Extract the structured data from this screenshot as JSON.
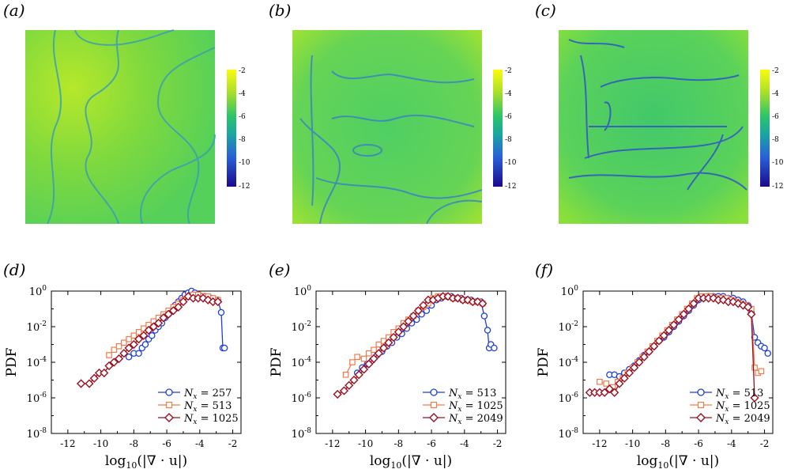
{
  "figure": {
    "panel_labels": [
      "(a)",
      "(b)",
      "(c)",
      "(d)",
      "(e)",
      "(f)"
    ]
  },
  "colorbar": {
    "ticks": [
      "-2",
      "-4",
      "-6",
      "-8",
      "-10",
      "-12"
    ],
    "range": [
      -12,
      -2
    ]
  },
  "colors": {
    "low": "#1a0a8c",
    "mid": "#2bc46a",
    "high": "#f9fb0e",
    "series_blue": "#1f3fd8",
    "series_orange": "#f07a4a",
    "series_red": "#9a1020"
  },
  "chart_data": [
    {
      "panel": "(d)",
      "type": "line",
      "ylabel": "PDF",
      "xlabel_main": "log",
      "xlabel_sub": "10",
      "xlabel_rest": "(|∇ · u|)",
      "xlim": [
        -13,
        -1.5
      ],
      "ylim_exp": [
        -8,
        0
      ],
      "xticks": [
        -12,
        -10,
        -8,
        -6,
        -4,
        -2
      ],
      "xtick_labels": [
        "-12",
        "-10",
        "-8",
        "-6",
        "-4",
        "-2"
      ],
      "yticks_exp": [
        0,
        -2,
        -4,
        -6,
        -8
      ],
      "ytick_labels": [
        "0",
        "-2",
        "-4",
        "-6",
        "-8"
      ],
      "legend": [
        "N",
        "N",
        "N"
      ],
      "series": [
        {
          "name": "N_x = 257",
          "legend_text": "= 257",
          "marker": "circle",
          "color": "#1f3fd8",
          "x": [
            -8.3,
            -8,
            -7.7,
            -7.5,
            -7.3,
            -7.1,
            -6.9,
            -6.7,
            -6.5,
            -6.3,
            -6.1,
            -5.9,
            -5.7,
            -5.5,
            -5.3,
            -5.1,
            -4.9,
            -4.7,
            -4.5,
            -4.3,
            -4.1,
            -3.9,
            -3.7,
            -3.5,
            -3.3,
            -3.1,
            -2.9,
            -2.7,
            -2.6,
            -2.5
          ],
          "y": [
            -3.7,
            -3.5,
            -3.5,
            -3.2,
            -3.0,
            -2.7,
            -2.5,
            -2.2,
            -2.0,
            -1.8,
            -1.5,
            -1.3,
            -1.1,
            -0.8,
            -0.6,
            -0.4,
            -0.2,
            -0.1,
            0.0,
            -0.1,
            -0.2,
            -0.3,
            -0.3,
            -0.4,
            -0.4,
            -0.5,
            -0.5,
            -1.2,
            -3.2,
            -3.2
          ]
        },
        {
          "name": "N_x = 513",
          "legend_text": "= 513",
          "marker": "square",
          "color": "#f07a4a",
          "x": [
            -9.5,
            -9.2,
            -8.9,
            -8.6,
            -8.3,
            -8.0,
            -7.7,
            -7.4,
            -7.1,
            -6.8,
            -6.5,
            -6.2,
            -5.9,
            -5.6,
            -5.3,
            -5.0,
            -4.7,
            -4.4,
            -4.1,
            -3.8,
            -3.5,
            -3.2,
            -2.9
          ],
          "y": [
            -3.6,
            -3.3,
            -3.1,
            -2.9,
            -2.7,
            -2.5,
            -2.3,
            -2.1,
            -1.9,
            -1.7,
            -1.5,
            -1.3,
            -1.1,
            -0.9,
            -0.7,
            -0.5,
            -0.3,
            -0.2,
            -0.2,
            -0.3,
            -0.3,
            -0.4,
            -0.5
          ]
        },
        {
          "name": "N_x = 1025",
          "legend_text": "= 1025",
          "marker": "diamond",
          "color": "#9a1020",
          "x": [
            -11.2,
            -10.7,
            -10.4,
            -10.1,
            -9.8,
            -9.5,
            -9.2,
            -8.9,
            -8.6,
            -8.3,
            -8.0,
            -7.7,
            -7.4,
            -7.1,
            -6.8,
            -6.5,
            -6.2,
            -5.9,
            -5.6,
            -5.3,
            -5.0,
            -4.7,
            -4.4,
            -4.1,
            -3.8,
            -3.5,
            -3.2,
            -2.9
          ],
          "y": [
            -5.2,
            -5.2,
            -4.9,
            -4.6,
            -4.6,
            -4.2,
            -4.0,
            -3.8,
            -3.5,
            -3.2,
            -3.0,
            -2.7,
            -2.5,
            -2.2,
            -2.0,
            -1.8,
            -1.5,
            -1.3,
            -1.1,
            -0.9,
            -0.6,
            -0.3,
            -0.4,
            -0.4,
            -0.4,
            -0.5,
            -0.6,
            -0.6
          ]
        }
      ]
    },
    {
      "panel": "(e)",
      "type": "line",
      "ylabel": "PDF",
      "xlabel_main": "log",
      "xlabel_sub": "10",
      "xlabel_rest": "(|∇ · u|)",
      "xlim": [
        -13,
        -1.5
      ],
      "ylim_exp": [
        -8,
        0
      ],
      "xticks": [
        -12,
        -10,
        -8,
        -6,
        -4,
        -2
      ],
      "xtick_labels": [
        "-12",
        "-10",
        "-8",
        "-6",
        "-4",
        "-2"
      ],
      "yticks_exp": [
        0,
        -2,
        -4,
        -6,
        -8
      ],
      "ytick_labels": [
        "0",
        "-2",
        "-4",
        "-6",
        "-8"
      ],
      "legend": [
        "N",
        "N",
        "N"
      ],
      "series": [
        {
          "name": "N_x = 513",
          "legend_text": "= 513",
          "marker": "circle",
          "color": "#1f3fd8",
          "x": [
            -10.5,
            -10.2,
            -9.9,
            -9.6,
            -9.3,
            -9.0,
            -8.7,
            -8.4,
            -8.1,
            -7.8,
            -7.5,
            -7.2,
            -6.9,
            -6.6,
            -6.3,
            -6.0,
            -5.7,
            -5.4,
            -5.1,
            -4.8,
            -4.5,
            -4.2,
            -3.9,
            -3.6,
            -3.3,
            -3.0,
            -2.8,
            -2.6,
            -2.5,
            -2.4,
            -2.2
          ],
          "y": [
            -4.6,
            -4.3,
            -4.1,
            -3.9,
            -3.6,
            -3.4,
            -3.1,
            -2.9,
            -2.6,
            -2.4,
            -2.1,
            -1.8,
            -1.6,
            -1.3,
            -1.1,
            -0.8,
            -0.5,
            -0.4,
            -0.3,
            -0.3,
            -0.4,
            -0.4,
            -0.5,
            -0.5,
            -0.6,
            -0.6,
            -1.4,
            -2.2,
            -3.2,
            -3.0,
            -3.2
          ]
        },
        {
          "name": "N_x = 1025",
          "legend_text": "= 1025",
          "marker": "square",
          "color": "#f07a4a",
          "x": [
            -11.2,
            -10.8,
            -10.5,
            -10.1,
            -9.8,
            -9.5,
            -9.2,
            -8.9,
            -8.6,
            -8.3,
            -8.0,
            -7.7,
            -7.4,
            -7.1,
            -6.8,
            -6.5,
            -6.2,
            -5.9,
            -5.6,
            -5.3,
            -5.0,
            -4.7,
            -4.4,
            -4.1,
            -3.8,
            -3.5,
            -3.2,
            -2.9
          ],
          "y": [
            -4.7,
            -4.0,
            -3.7,
            -3.8,
            -3.5,
            -3.3,
            -3.0,
            -2.8,
            -2.6,
            -2.3,
            -2.1,
            -1.8,
            -1.6,
            -1.4,
            -1.1,
            -0.9,
            -0.7,
            -0.4,
            -0.3,
            -0.3,
            -0.3,
            -0.4,
            -0.4,
            -0.5,
            -0.5,
            -0.6,
            -0.6,
            -0.7
          ]
        },
        {
          "name": "N_x = 2049",
          "legend_text": "= 2049",
          "marker": "diamond",
          "color": "#9a1020",
          "x": [
            -11.7,
            -11.3,
            -11.0,
            -10.7,
            -10.4,
            -10.1,
            -9.8,
            -9.5,
            -9.2,
            -8.9,
            -8.6,
            -8.3,
            -8.0,
            -7.7,
            -7.4,
            -7.1,
            -6.8,
            -6.5,
            -6.2,
            -5.9,
            -5.6,
            -5.3,
            -5.0,
            -4.7,
            -4.4,
            -4.1,
            -3.8,
            -3.5,
            -3.2,
            -2.9
          ],
          "y": [
            -5.8,
            -5.6,
            -5.3,
            -5.0,
            -4.7,
            -4.4,
            -4.1,
            -3.8,
            -3.5,
            -3.2,
            -2.9,
            -2.6,
            -2.3,
            -2.0,
            -1.7,
            -1.4,
            -1.1,
            -0.8,
            -0.5,
            -0.5,
            -0.4,
            -0.3,
            -0.3,
            -0.4,
            -0.4,
            -0.5,
            -0.5,
            -0.6,
            -0.6,
            -0.7
          ]
        }
      ]
    },
    {
      "panel": "(f)",
      "type": "line",
      "ylabel": "PDF",
      "xlabel_main": "log",
      "xlabel_sub": "10",
      "xlabel_rest": "(|∇ · u|)",
      "xlim": [
        -13,
        -1.5
      ],
      "ylim_exp": [
        -8,
        0
      ],
      "xticks": [
        -12,
        -10,
        -8,
        -6,
        -4,
        -2
      ],
      "xtick_labels": [
        "-12",
        "-10",
        "-8",
        "-6",
        "-4",
        "-2"
      ],
      "yticks_exp": [
        0,
        -2,
        -4,
        -6,
        -8
      ],
      "ytick_labels": [
        "0",
        "-2",
        "-4",
        "-6",
        "-8"
      ],
      "legend": [
        "N",
        "N",
        "N"
      ],
      "series": [
        {
          "name": "N_x = 513",
          "legend_text": "= 513",
          "marker": "circle",
          "color": "#1f3fd8",
          "x": [
            -11.4,
            -11.1,
            -10.8,
            -10.5,
            -10.2,
            -9.9,
            -9.6,
            -9.3,
            -9.0,
            -8.7,
            -8.4,
            -8.1,
            -7.8,
            -7.5,
            -7.2,
            -6.9,
            -6.6,
            -6.3,
            -6.0,
            -5.7,
            -5.4,
            -5.1,
            -4.8,
            -4.5,
            -4.2,
            -3.9,
            -3.6,
            -3.3,
            -3.0,
            -2.8,
            -2.6,
            -2.4,
            -2.2,
            -2.0,
            -1.8
          ],
          "y": [
            -4.7,
            -4.7,
            -4.8,
            -4.6,
            -4.4,
            -4.2,
            -3.9,
            -3.6,
            -3.4,
            -3.1,
            -2.8,
            -2.6,
            -2.3,
            -2.0,
            -1.7,
            -1.4,
            -1.1,
            -0.8,
            -0.5,
            -0.4,
            -0.3,
            -0.3,
            -0.3,
            -0.3,
            -0.4,
            -0.4,
            -0.5,
            -0.6,
            -0.8,
            -1.2,
            -2.6,
            -2.9,
            -3.1,
            -3.2,
            -3.5
          ]
        },
        {
          "name": "N_x = 1025",
          "legend_text": "= 1025",
          "marker": "square",
          "color": "#f07a4a",
          "x": [
            -12.0,
            -11.6,
            -11.2,
            -10.9,
            -10.6,
            -10.3,
            -10.0,
            -9.7,
            -9.4,
            -9.1,
            -8.8,
            -8.5,
            -8.2,
            -7.9,
            -7.6,
            -7.3,
            -7.0,
            -6.7,
            -6.4,
            -6.1,
            -5.8,
            -5.5,
            -5.2,
            -4.9,
            -4.6,
            -4.3,
            -4.0,
            -3.7,
            -3.4,
            -3.1,
            -2.8,
            -2.6,
            -2.4,
            -2.2
          ],
          "y": [
            -5.1,
            -5.2,
            -5.4,
            -5.1,
            -4.9,
            -4.6,
            -4.3,
            -4.0,
            -3.7,
            -3.4,
            -3.1,
            -2.8,
            -2.5,
            -2.2,
            -1.9,
            -1.6,
            -1.3,
            -1.0,
            -0.7,
            -0.4,
            -0.3,
            -0.3,
            -0.3,
            -0.4,
            -0.4,
            -0.4,
            -0.5,
            -0.6,
            -0.7,
            -0.8,
            -1.0,
            -4.3,
            -4.6,
            -4.5
          ]
        },
        {
          "name": "N_x = 2049",
          "legend_text": "= 2049",
          "marker": "diamond",
          "color": "#9a1020",
          "x": [
            -12.6,
            -12.3,
            -12.0,
            -11.7,
            -11.4,
            -11.1,
            -10.8,
            -10.5,
            -10.2,
            -9.9,
            -9.6,
            -9.3,
            -9.0,
            -8.7,
            -8.4,
            -8.1,
            -7.8,
            -7.5,
            -7.2,
            -6.9,
            -6.6,
            -6.3,
            -6.0,
            -5.7,
            -5.4,
            -5.1,
            -4.8,
            -4.5,
            -4.2,
            -3.9,
            -3.6,
            -3.3,
            -3.0,
            -2.8,
            -2.6
          ],
          "y": [
            -5.7,
            -5.7,
            -5.7,
            -5.7,
            -5.5,
            -5.7,
            -5.2,
            -4.9,
            -4.6,
            -4.3,
            -4.0,
            -3.7,
            -3.4,
            -3.1,
            -2.8,
            -2.5,
            -2.2,
            -1.9,
            -1.6,
            -1.3,
            -1.0,
            -0.7,
            -0.4,
            -0.4,
            -0.4,
            -0.4,
            -0.5,
            -0.5,
            -0.6,
            -0.6,
            -0.7,
            -0.8,
            -0.9,
            -1.3,
            -6.0
          ]
        }
      ]
    }
  ]
}
